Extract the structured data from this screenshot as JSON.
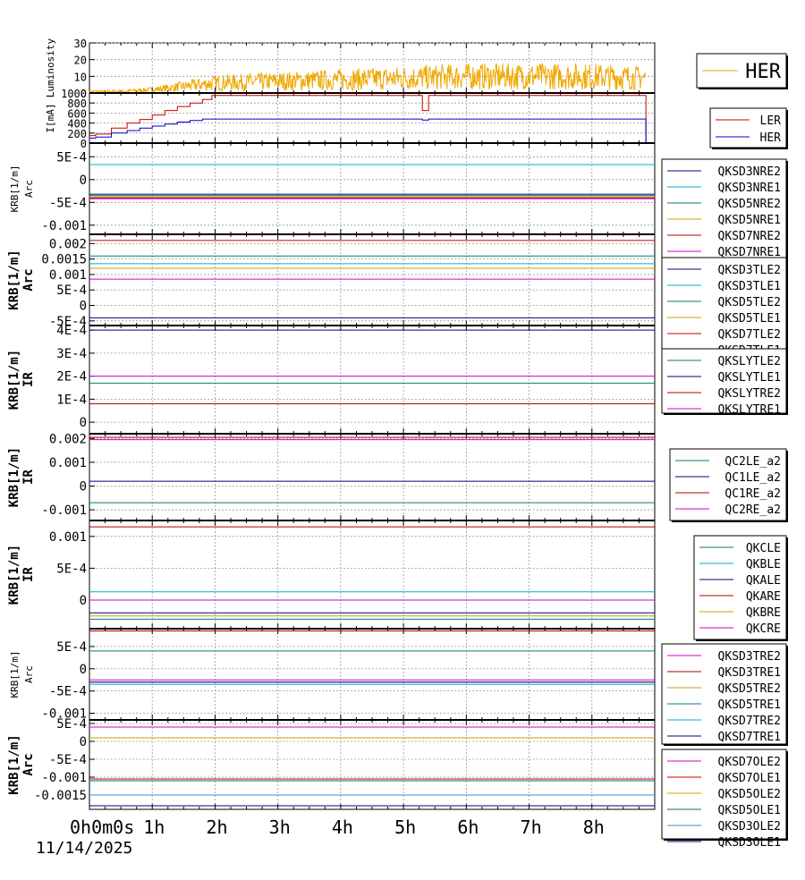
{
  "date_label": "11/14/2025",
  "x_ticks": [
    "0h0m0s",
    "1h",
    "2h",
    "3h",
    "4h",
    "5h",
    "6h",
    "7h",
    "8h"
  ],
  "colors": {
    "orange": "#f0a800",
    "red": "#cc0000",
    "blue": "#0000cc",
    "cyan": "#00b0d0",
    "teal": "#00806a",
    "gold": "#c8a000",
    "dred": "#b00000",
    "magenta": "#d000d0",
    "navy": "#000080",
    "dteal": "#007060",
    "lblue": "#3090e0"
  },
  "chart_data": [
    {
      "type": "line",
      "ylabel": "Luminosity",
      "ylim": [
        0,
        30
      ],
      "yticks": [
        "30",
        "20",
        "10",
        "0"
      ],
      "grid": true,
      "legend_placement": "right",
      "series": [
        {
          "name": "HER",
          "color": "orange",
          "x": [
            0,
            0.5,
            1,
            1.5,
            2,
            3,
            4,
            5,
            6,
            7,
            8,
            8.85
          ],
          "y": [
            1,
            1,
            2,
            4,
            6,
            7,
            8,
            9,
            10,
            10,
            10,
            9
          ]
        }
      ]
    },
    {
      "type": "line",
      "ylabel": "I[mA]",
      "ylim": [
        0,
        1000
      ],
      "yticks": [
        "1000",
        "800",
        "600",
        "400",
        "200",
        "0"
      ],
      "grid": true,
      "legend_placement": "right",
      "series": [
        {
          "name": "LER",
          "color": "red",
          "x": [
            0,
            0.1,
            0.35,
            0.6,
            0.8,
            1.0,
            1.2,
            1.4,
            1.6,
            1.8,
            1.95,
            5.2,
            5.3,
            5.4,
            8.85,
            8.86
          ],
          "y": [
            150,
            180,
            300,
            400,
            470,
            560,
            650,
            730,
            800,
            870,
            950,
            950,
            650,
            950,
            950,
            0
          ]
        },
        {
          "name": "HER",
          "color": "blue",
          "x": [
            0,
            0.1,
            0.35,
            0.6,
            0.8,
            1.0,
            1.2,
            1.4,
            1.6,
            1.8,
            5.2,
            5.3,
            5.4,
            8.85,
            8.86
          ],
          "y": [
            100,
            120,
            200,
            250,
            300,
            340,
            380,
            420,
            450,
            480,
            480,
            460,
            480,
            480,
            0
          ]
        }
      ]
    },
    {
      "type": "line",
      "ylabel": "KRB[1/m]",
      "ylabel2": "Arc",
      "ylim": [
        -0.0012,
        0.0008
      ],
      "yticks": [
        "5E-4",
        "0",
        "-5E-4",
        "-0.001"
      ],
      "tick_values": [
        0.0005,
        0,
        -0.0005,
        -0.001
      ],
      "grid": true,
      "legend_placement": "right",
      "series": [
        {
          "name": "QKSD3NRE2",
          "color": "navy",
          "value": -0.00032
        },
        {
          "name": "QKSD3NRE1",
          "color": "cyan",
          "value": 0.00033
        },
        {
          "name": "QKSD5NRE2",
          "color": "teal",
          "value": -0.00035
        },
        {
          "name": "QKSD5NRE1",
          "color": "gold",
          "value": -0.00038
        },
        {
          "name": "QKSD7NRE2",
          "color": "dred",
          "value": -0.0004
        },
        {
          "name": "QKSD7NRE1",
          "color": "magenta",
          "value": -0.00042
        }
      ]
    },
    {
      "type": "line",
      "ylabel": "KRB[1/m]",
      "ylabel2": "Arc",
      "ylim": [
        -0.00065,
        0.0023
      ],
      "yticks": [
        "0.002",
        "0.0015",
        "0.001",
        "5E-4",
        "0",
        "-5E-4"
      ],
      "tick_values": [
        0.002,
        0.0015,
        0.001,
        0.0005,
        0,
        -0.0005
      ],
      "grid": true,
      "legend_placement": "right",
      "series": [
        {
          "name": "QKSD3TLE2",
          "color": "navy",
          "value": -0.0004
        },
        {
          "name": "QKSD3TLE1",
          "color": "cyan",
          "value": 0.00135
        },
        {
          "name": "QKSD5TLE2",
          "color": "teal",
          "value": 0.0016
        },
        {
          "name": "QKSD5TLE1",
          "color": "gold",
          "value": 0.0012
        },
        {
          "name": "QKSD7TLE2",
          "color": "red",
          "value": 0.0021
        },
        {
          "name": "QKSD7TLE1",
          "color": "magenta",
          "value": 0.00085
        }
      ]
    },
    {
      "type": "line",
      "ylabel": "KRB[1/m]",
      "ylabel2": "IR",
      "ylim": [
        -5e-05,
        0.00042
      ],
      "yticks": [
        "4E-4",
        "3E-4",
        "2E-4",
        "1E-4",
        "0"
      ],
      "tick_values": [
        0.0004,
        0.0003,
        0.0002,
        0.0001,
        0
      ],
      "grid": true,
      "legend_placement": "right",
      "series": [
        {
          "name": "QKSLYTLE2",
          "color": "teal",
          "value": 0.00017
        },
        {
          "name": "QKSLYTLE1",
          "color": "navy",
          "value": 0.0004
        },
        {
          "name": "QKSLYTRE2",
          "color": "dred",
          "value": 8e-05
        },
        {
          "name": "QKSLYTRE1",
          "color": "magenta",
          "value": 0.0002
        }
      ]
    },
    {
      "type": "line",
      "ylabel": "KRB[1/m]",
      "ylabel2": "IR",
      "ylim": [
        -0.00145,
        0.0022
      ],
      "yticks": [
        "0.002",
        "0.001",
        "0",
        "-0.001"
      ],
      "tick_values": [
        0.002,
        0.001,
        0,
        -0.001
      ],
      "grid": true,
      "legend_placement": "right",
      "series": [
        {
          "name": "QC2LE_a2",
          "color": "teal",
          "value": -0.0007
        },
        {
          "name": "QC1LE_a2",
          "color": "navy",
          "value": 0.0002
        },
        {
          "name": "QC1RE_a2",
          "color": "dred",
          "value": 0.00205
        },
        {
          "name": "QC2RE_a2",
          "color": "magenta",
          "value": 0.00195
        }
      ]
    },
    {
      "type": "line",
      "ylabel": "KRB[1/m]",
      "ylabel2": "IR",
      "ylim": [
        -0.00045,
        0.00125
      ],
      "yticks": [
        "0.001",
        "5E-4",
        "0"
      ],
      "tick_values": [
        0.001,
        0.0005,
        0
      ],
      "grid": true,
      "legend_placement": "right",
      "series": [
        {
          "name": "QKCLE",
          "color": "teal",
          "value": -0.0003
        },
        {
          "name": "QKBLE",
          "color": "cyan",
          "value": 0.00013
        },
        {
          "name": "QKALE",
          "color": "navy",
          "value": -0.0002
        },
        {
          "name": "QKARE",
          "color": "dred",
          "value": 0.00115
        },
        {
          "name": "QKBRE",
          "color": "gold",
          "value": -0.00025
        },
        {
          "name": "QKCRE",
          "color": "magenta",
          "value": 0.0
        }
      ]
    },
    {
      "type": "line",
      "ylabel": "KRB[1/m]",
      "ylabel2": "Arc",
      "ylim": [
        -0.00115,
        0.0009
      ],
      "yticks": [
        "5E-4",
        "0",
        "-5E-4",
        "-0.001"
      ],
      "tick_values": [
        0.0005,
        0,
        -0.0005,
        -0.001
      ],
      "grid": true,
      "legend_placement": "right",
      "series": [
        {
          "name": "QKSD3TRE2",
          "color": "magenta",
          "value": -0.00025
        },
        {
          "name": "QKSD3TRE1",
          "color": "dred",
          "value": 0.00085
        },
        {
          "name": "QKSD5TRE2",
          "color": "gold",
          "value": -0.0003
        },
        {
          "name": "QKSD5TRE1",
          "color": "teal",
          "value": 0.0004
        },
        {
          "name": "QKSD7TRE2",
          "color": "cyan",
          "value": -0.00035
        },
        {
          "name": "QKSD7TRE1",
          "color": "navy",
          "value": -0.0003
        }
      ]
    },
    {
      "type": "line",
      "ylabel": "KRB[1/m]",
      "ylabel2": "Arc",
      "ylim": [
        -0.0019,
        0.0006
      ],
      "yticks": [
        "5E-4",
        "0",
        "-5E-4",
        "-0.001",
        "-0.0015"
      ],
      "tick_values": [
        0.0005,
        0,
        -0.0005,
        -0.001,
        -0.0015
      ],
      "grid": true,
      "legend_placement": "right",
      "series": [
        {
          "name": "QKSD7OLE2",
          "color": "magenta",
          "value": 0.0004
        },
        {
          "name": "QKSD7OLE1",
          "color": "red",
          "value": -0.00105
        },
        {
          "name": "QKSD5OLE2",
          "color": "gold",
          "value": 0.0001
        },
        {
          "name": "QKSD5OLE1",
          "color": "dteal",
          "value": -0.0011
        },
        {
          "name": "QKSD3OLE2",
          "color": "lblue",
          "value": -0.0015
        },
        {
          "name": "QKSD3OLE1",
          "color": "navy",
          "value": -0.0018
        }
      ]
    }
  ]
}
